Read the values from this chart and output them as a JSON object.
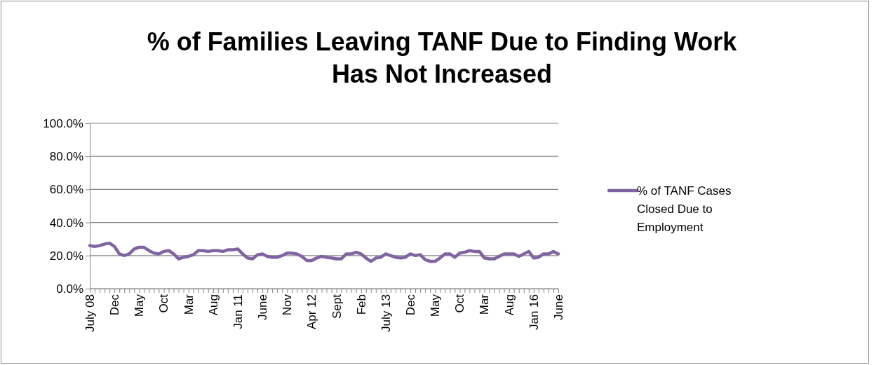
{
  "chart_data": {
    "type": "line",
    "title": "% of Families Leaving TANF Due to Finding Work Has Not Increased",
    "categories": [
      "July 08",
      null,
      null,
      null,
      null,
      "Dec",
      null,
      null,
      null,
      null,
      "May",
      null,
      null,
      null,
      null,
      "Oct",
      null,
      null,
      null,
      null,
      "Mar",
      null,
      null,
      null,
      null,
      "Aug",
      null,
      null,
      null,
      null,
      "Jan 11",
      null,
      null,
      null,
      null,
      "June",
      null,
      null,
      null,
      null,
      "Nov",
      null,
      null,
      null,
      null,
      "Apr 12",
      null,
      null,
      null,
      null,
      "Sept",
      null,
      null,
      null,
      null,
      "Feb",
      null,
      null,
      null,
      null,
      "July 13",
      null,
      null,
      null,
      null,
      "Dec",
      null,
      null,
      null,
      null,
      "May",
      null,
      null,
      null,
      null,
      "Oct",
      null,
      null,
      null,
      null,
      "Mar",
      null,
      null,
      null,
      null,
      "Aug",
      null,
      null,
      null,
      null,
      "Jan 16",
      null,
      null,
      null,
      null,
      "June"
    ],
    "series": [
      {
        "name": "% of TANF Cases Closed Due to Employment",
        "color": "#8064a2",
        "values": [
          26,
          25.5,
          26,
          27,
          27.5,
          25.5,
          21,
          20,
          21,
          24,
          25,
          25,
          23,
          21.5,
          21,
          22.5,
          23,
          21,
          18,
          19,
          19.5,
          20.5,
          23,
          23,
          22.5,
          23,
          23,
          22.5,
          23.5,
          23.5,
          24,
          21,
          18.5,
          18,
          20.5,
          21,
          19.5,
          19,
          19,
          20,
          21.5,
          21.5,
          21,
          19.5,
          17,
          17,
          18.5,
          19.5,
          19,
          18.5,
          18,
          18,
          21,
          21,
          22,
          21,
          18.5,
          16.5,
          18.5,
          19,
          21,
          20,
          19,
          18.5,
          19,
          21,
          20,
          20.5,
          17.5,
          16.5,
          16.5,
          18.5,
          21,
          21,
          19,
          21.5,
          22,
          23,
          22.5,
          22.5,
          18.5,
          18,
          18,
          19.5,
          21,
          21,
          21,
          19.5,
          21,
          22.5,
          18.5,
          19,
          21,
          21,
          22.5,
          21
        ]
      }
    ],
    "ylim": [
      0,
      100
    ],
    "yticks": [
      {
        "value": 0,
        "label": "0.0%"
      },
      {
        "value": 20,
        "label": "20.0%"
      },
      {
        "value": 40,
        "label": "40.0%"
      },
      {
        "value": 60,
        "label": "60.0%"
      },
      {
        "value": 80,
        "label": "80.0%"
      },
      {
        "value": 100,
        "label": "100.0%"
      }
    ],
    "grid": "y",
    "legend": "right",
    "marker": "none",
    "line_style": "solid"
  }
}
